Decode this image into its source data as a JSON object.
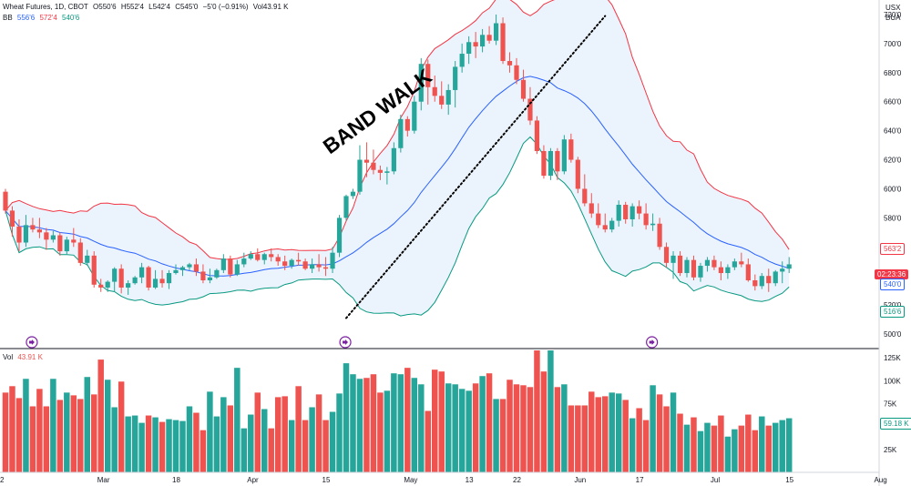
{
  "header": {
    "symbol": "Wheat Futures, 1D, CBOT",
    "open": "O550'6",
    "high": "H552'4",
    "low": "L542'4",
    "close": "C545'0",
    "change": "−5'0 (−0.91%)",
    "volume_text": "Vol43.91 K",
    "bb_label": "BB",
    "bb_basis": "556'6",
    "bb_upper": "572'4",
    "bb_lower": "540'6",
    "currency": "USX",
    "unit": "BUA"
  },
  "volume_pane": {
    "label": "Vol",
    "value": "43.91 K",
    "last_tag": "59.18 K"
  },
  "price_tags": {
    "upper": "563'2",
    "time": "02:23:36",
    "basis": "540'0",
    "lower": "516'6"
  },
  "annotation": "BAND WALK",
  "colors": {
    "up": "#26a69a",
    "down": "#ef5350",
    "upper_band": "#f23645",
    "basis": "#2962ff",
    "lower_band": "#089981",
    "band_fill": "#e8f1fb",
    "event_icon": "#7b1fa2"
  },
  "chart_data": {
    "type": "candlestick",
    "title": "Wheat Futures, 1D, CBOT",
    "price_axis": {
      "ticks": [
        "500'0",
        "520'0",
        "540'0",
        "560'0",
        "580'0",
        "600'0",
        "620'0",
        "640'0",
        "660'0",
        "680'0",
        "700'0",
        "720'0"
      ],
      "range": [
        490,
        730
      ]
    },
    "volume_axis": {
      "ticks": [
        "25K",
        "50K",
        "75K",
        "100K",
        "125K"
      ],
      "range": [
        0,
        135
      ]
    },
    "x_ticks": [
      "2",
      "Mar",
      "18",
      "Apr",
      "15",
      "May",
      "13",
      "22",
      "Jun",
      "17",
      "Jul",
      "15",
      "Aug"
    ],
    "x_tick_bars": [
      0,
      14,
      25,
      36,
      47,
      59,
      68,
      75,
      84,
      93,
      104,
      115,
      128
    ],
    "event_marker_bars": [
      2,
      48,
      93
    ],
    "annotation_line": {
      "from": [
        50,
        511
      ],
      "to": [
        88,
        719
      ]
    },
    "bars": [
      [
        598,
        600,
        583,
        585,
        87
      ],
      [
        585,
        588,
        567,
        574,
        94
      ],
      [
        574,
        579,
        557,
        563,
        81
      ],
      [
        563,
        582,
        560,
        575,
        102
      ],
      [
        575,
        580,
        570,
        572,
        72
      ],
      [
        572,
        580,
        566,
        570,
        91
      ],
      [
        570,
        573,
        558,
        565,
        72
      ],
      [
        565,
        571,
        563,
        568,
        102
      ],
      [
        568,
        570,
        554,
        557,
        79
      ],
      [
        557,
        567,
        555,
        565,
        87
      ],
      [
        565,
        573,
        560,
        563,
        84
      ],
      [
        563,
        566,
        547,
        549,
        80
      ],
      [
        549,
        558,
        547,
        554,
        104
      ],
      [
        554,
        557,
        532,
        534,
        85
      ],
      [
        534,
        538,
        529,
        532,
        123
      ],
      [
        532,
        537,
        529,
        536,
        101
      ],
      [
        536,
        546,
        529,
        545,
        71
      ],
      [
        545,
        548,
        528,
        532,
        99
      ],
      [
        532,
        537,
        527,
        535,
        61
      ],
      [
        535,
        540,
        534,
        539,
        62
      ],
      [
        539,
        549,
        535,
        546,
        54
      ],
      [
        546,
        547,
        530,
        532,
        62
      ],
      [
        532,
        544,
        531,
        538,
        60
      ],
      [
        538,
        544,
        532,
        535,
        55
      ],
      [
        535,
        544,
        531,
        542,
        58
      ],
      [
        542,
        548,
        541,
        544,
        57
      ],
      [
        544,
        547,
        540,
        546,
        56
      ],
      [
        546,
        549,
        544,
        548,
        72
      ],
      [
        548,
        552,
        540,
        543,
        65
      ],
      [
        543,
        548,
        535,
        537,
        46
      ],
      [
        537,
        545,
        535,
        539,
        88
      ],
      [
        539,
        545,
        538,
        544,
        61
      ],
      [
        544,
        555,
        542,
        552,
        82
      ],
      [
        552,
        554,
        539,
        541,
        73
      ],
      [
        541,
        551,
        540,
        548,
        114
      ],
      [
        548,
        556,
        546,
        552,
        48
      ],
      [
        552,
        557,
        551,
        555,
        63
      ],
      [
        555,
        559,
        550,
        551,
        87
      ],
      [
        551,
        556,
        548,
        555,
        69
      ],
      [
        555,
        559,
        550,
        553,
        48
      ],
      [
        553,
        555,
        547,
        550,
        82
      ],
      [
        550,
        554,
        544,
        547,
        83
      ],
      [
        547,
        552,
        545,
        551,
        57
      ],
      [
        551,
        556,
        547,
        550,
        94
      ],
      [
        550,
        552,
        544,
        545,
        57
      ],
      [
        545,
        552,
        542,
        548,
        71
      ],
      [
        548,
        555,
        543,
        546,
        85
      ],
      [
        546,
        553,
        540,
        545,
        57
      ],
      [
        545,
        560,
        542,
        556,
        66
      ],
      [
        556,
        582,
        553,
        580,
        86
      ],
      [
        580,
        596,
        578,
        595,
        119
      ],
      [
        595,
        600,
        593,
        598,
        107
      ],
      [
        598,
        630,
        596,
        620,
        102
      ],
      [
        620,
        632,
        608,
        618,
        103
      ],
      [
        618,
        627,
        610,
        613,
        107
      ],
      [
        613,
        616,
        606,
        611,
        87
      ],
      [
        611,
        615,
        603,
        612,
        89
      ],
      [
        612,
        632,
        610,
        628,
        108
      ],
      [
        628,
        651,
        625,
        648,
        107
      ],
      [
        648,
        650,
        636,
        640,
        114
      ],
      [
        640,
        664,
        638,
        660,
        103
      ],
      [
        660,
        690,
        654,
        686,
        96
      ],
      [
        686,
        689,
        658,
        670,
        67
      ],
      [
        670,
        678,
        660,
        664,
        112
      ],
      [
        664,
        674,
        655,
        658,
        110
      ],
      [
        658,
        672,
        651,
        668,
        97
      ],
      [
        668,
        688,
        656,
        684,
        96
      ],
      [
        684,
        700,
        680,
        693,
        91
      ],
      [
        693,
        705,
        686,
        701,
        89
      ],
      [
        701,
        708,
        690,
        698,
        97
      ],
      [
        698,
        710,
        694,
        706,
        105
      ],
      [
        706,
        712,
        700,
        702,
        108
      ],
      [
        702,
        720,
        699,
        714,
        80
      ],
      [
        714,
        718,
        686,
        688,
        80
      ],
      [
        688,
        694,
        680,
        685,
        101
      ],
      [
        685,
        690,
        672,
        675,
        96
      ],
      [
        675,
        682,
        660,
        662,
        95
      ],
      [
        662,
        670,
        644,
        647,
        93
      ],
      [
        647,
        650,
        624,
        626,
        133
      ],
      [
        626,
        630,
        607,
        609,
        110
      ],
      [
        609,
        628,
        606,
        626,
        133
      ],
      [
        626,
        628,
        606,
        612,
        93
      ],
      [
        612,
        637,
        610,
        634,
        96
      ],
      [
        634,
        638,
        618,
        620,
        73
      ],
      [
        620,
        622,
        597,
        600,
        73
      ],
      [
        600,
        610,
        588,
        590,
        73
      ],
      [
        590,
        597,
        580,
        583,
        88
      ],
      [
        583,
        590,
        573,
        575,
        82
      ],
      [
        575,
        583,
        570,
        572,
        83
      ],
      [
        572,
        580,
        570,
        578,
        87
      ],
      [
        578,
        592,
        574,
        589,
        86
      ],
      [
        589,
        591,
        576,
        579,
        79
      ],
      [
        579,
        590,
        574,
        588,
        59
      ],
      [
        588,
        592,
        579,
        583,
        70
      ],
      [
        583,
        590,
        572,
        575,
        57
      ],
      [
        575,
        583,
        571,
        576,
        95
      ],
      [
        576,
        580,
        558,
        560,
        85
      ],
      [
        560,
        563,
        546,
        549,
        72
      ],
      [
        549,
        557,
        538,
        554,
        87
      ],
      [
        554,
        557,
        540,
        542,
        64
      ],
      [
        542,
        553,
        539,
        551,
        52
      ],
      [
        551,
        554,
        537,
        539,
        60
      ],
      [
        539,
        549,
        536,
        547,
        45
      ],
      [
        547,
        553,
        543,
        551,
        54
      ],
      [
        551,
        554,
        544,
        546,
        51
      ],
      [
        546,
        550,
        537,
        542,
        62
      ],
      [
        542,
        548,
        538,
        546,
        39
      ],
      [
        546,
        552,
        544,
        550,
        47
      ],
      [
        550,
        556,
        546,
        548,
        51
      ],
      [
        548,
        552,
        536,
        537,
        63
      ],
      [
        537,
        541,
        530,
        533,
        46
      ],
      [
        533,
        542,
        531,
        540,
        61
      ],
      [
        540,
        545,
        529,
        535,
        51
      ],
      [
        535,
        544,
        533,
        543,
        54
      ],
      [
        543,
        550,
        535,
        545,
        57
      ],
      [
        545,
        553,
        542,
        548,
        59
      ]
    ]
  }
}
